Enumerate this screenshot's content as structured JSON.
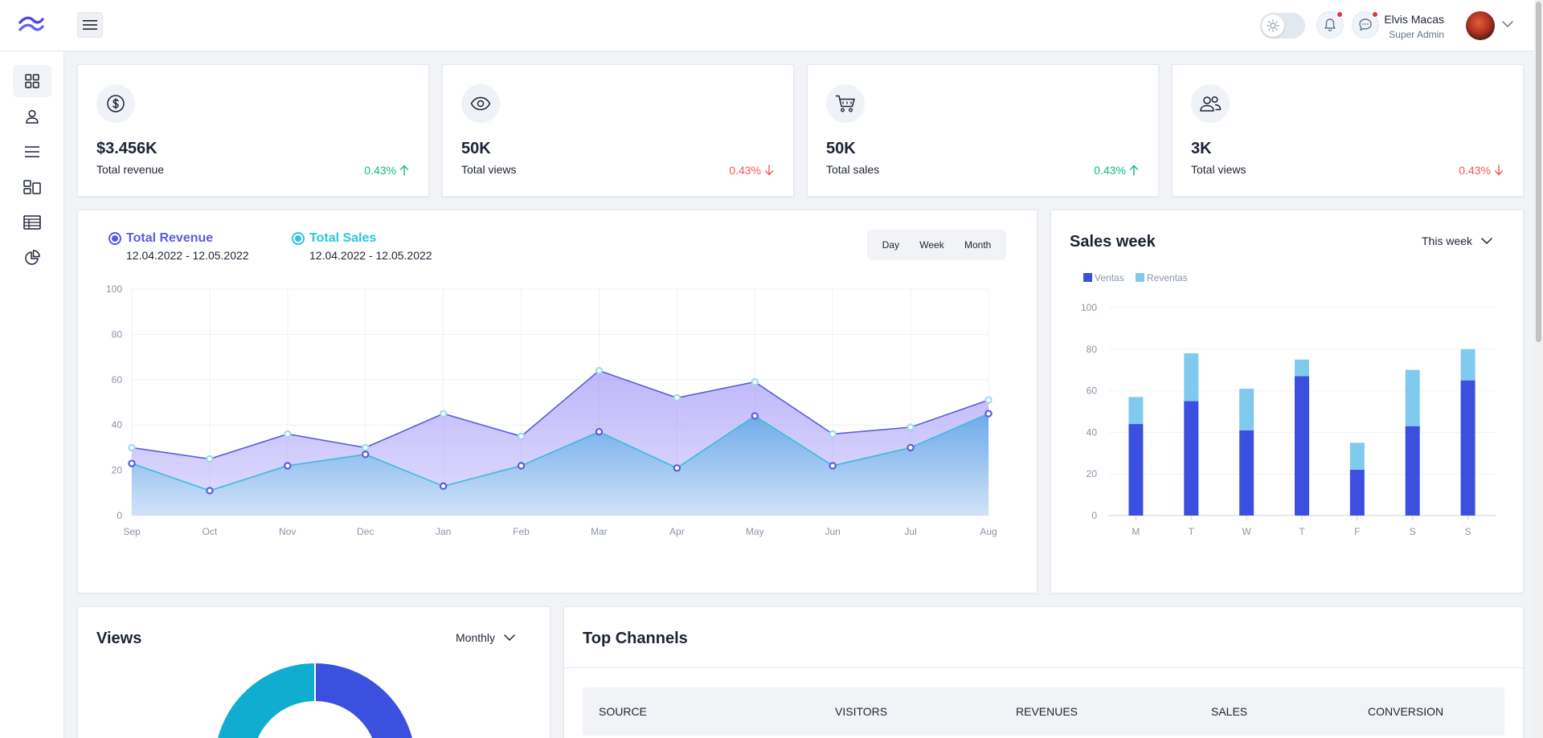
{
  "header": {
    "user_name": "Elvis Macas",
    "user_role": "Super Admin"
  },
  "sidebar": {
    "items": [
      {
        "icon": "grid-icon",
        "active": true
      },
      {
        "icon": "user-icon"
      },
      {
        "icon": "list-icon"
      },
      {
        "icon": "layout-icon"
      },
      {
        "icon": "table-icon"
      },
      {
        "icon": "pie-chart-icon"
      }
    ]
  },
  "stats": [
    {
      "icon": "dollar-icon",
      "value": "$3.456K",
      "label": "Total revenue",
      "change": "0.43%",
      "direction": "up"
    },
    {
      "icon": "eye-icon",
      "value": "50K",
      "label": "Total views",
      "change": "0.43%",
      "direction": "down"
    },
    {
      "icon": "cart-icon",
      "value": "50K",
      "label": "Total sales",
      "change": "0.43%",
      "direction": "up"
    },
    {
      "icon": "users-icon",
      "value": "3K",
      "label": "Total views",
      "change": "0.43%",
      "direction": "down"
    }
  ],
  "revenue": {
    "series_a_name": "Total Revenue",
    "series_a_date": "12.04.2022 - 12.05.2022",
    "series_b_name": "Total Sales",
    "series_b_date": "12.04.2022 - 12.05.2022",
    "ranges": [
      "Day",
      "Week",
      "Month"
    ]
  },
  "sales_week": {
    "title": "Sales week",
    "select": "This week"
  },
  "views": {
    "title": "Views",
    "select": "Monthly"
  },
  "channels": {
    "title": "Top Channels",
    "columns": [
      "Source",
      "Visitors",
      "Revenues",
      "Sales",
      "Conversion"
    ]
  },
  "colors": {
    "revenue_line": "#5a5ce0",
    "sales_line": "#38bdd8",
    "ventas": "#3c50e0",
    "reventas": "#80caee",
    "up": "#10b981",
    "down": "#fb5454"
  },
  "chart_data": [
    {
      "type": "area",
      "categories": [
        "Sep",
        "Oct",
        "Nov",
        "Dec",
        "Jan",
        "Feb",
        "Mar",
        "Apr",
        "May",
        "Jun",
        "Jul",
        "Aug"
      ],
      "series": [
        {
          "name": "Total Revenue",
          "values": [
            30,
            25,
            36,
            30,
            45,
            35,
            64,
            52,
            59,
            36,
            39,
            51
          ]
        },
        {
          "name": "Total Sales",
          "values": [
            23,
            11,
            22,
            27,
            13,
            22,
            37,
            21,
            44,
            22,
            30,
            45
          ]
        }
      ],
      "ylim": [
        0,
        100
      ],
      "yticks": [
        0,
        20,
        40,
        60,
        80,
        100
      ],
      "grid": true
    },
    {
      "type": "bar",
      "stacked": true,
      "categories": [
        "M",
        "T",
        "W",
        "T",
        "F",
        "S",
        "S"
      ],
      "series": [
        {
          "name": "Ventas",
          "values": [
            44,
            55,
            41,
            67,
            22,
            43,
            65
          ]
        },
        {
          "name": "Reventas",
          "values": [
            13,
            23,
            20,
            8,
            13,
            27,
            15
          ]
        }
      ],
      "ylim": [
        0,
        100
      ],
      "yticks": [
        0,
        20,
        40,
        60,
        80,
        100
      ],
      "legend": "top-left"
    },
    {
      "type": "pie",
      "donut": true,
      "slices": [
        {
          "label": "",
          "value": 25
        },
        {
          "label": "",
          "value": 25
        }
      ]
    }
  ]
}
